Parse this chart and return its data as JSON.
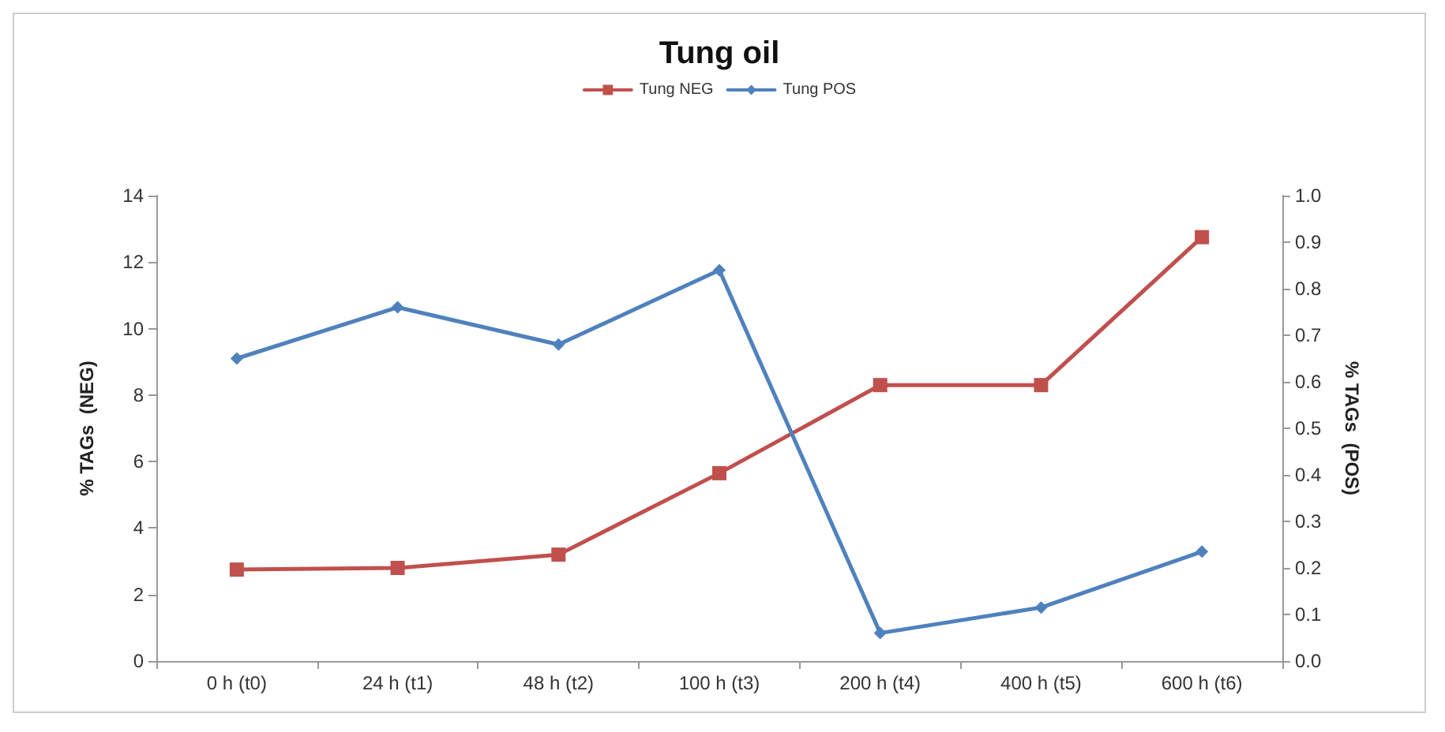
{
  "chart_data": {
    "type": "line",
    "title": "Tung oil",
    "ylabel": "% TAGs  (NEG)",
    "y2label": "% TAGs  (POS)",
    "categories": [
      "0 h (t0)",
      "24 h (t1)",
      "48 h (t2)",
      "100 h (t3)",
      "200 h (t4)",
      "400 h (t5)",
      "600 h (t6)"
    ],
    "series": [
      {
        "name": "Tung NEG",
        "color": "#c0504d",
        "marker": "square",
        "values": [
          2.75,
          2.8,
          3.2,
          5.65,
          8.3,
          8.3,
          12.75
        ]
      },
      {
        "name": "Tung POS",
        "color": "#4f81bd",
        "marker": "diamond",
        "axis": "y2",
        "values": [
          0.65,
          0.76,
          0.68,
          0.84,
          0.06,
          0.115,
          0.235
        ]
      }
    ],
    "ylim": [
      0,
      14
    ],
    "yticks": [
      0,
      2,
      4,
      6,
      8,
      10,
      12,
      14
    ],
    "y2lim": [
      0,
      1
    ],
    "y2ticks": [
      {
        "value": 0,
        "label": "0.0"
      },
      {
        "value": 0.1,
        "label": "0.1"
      },
      {
        "value": 0.2,
        "label": "0.2"
      },
      {
        "value": 0.3,
        "label": "0.3"
      },
      {
        "value": 0.4,
        "label": "0.4"
      },
      {
        "value": 0.5,
        "label": "0.5"
      },
      {
        "value": 0.6,
        "label": "0.6"
      },
      {
        "value": 0.7,
        "label": "0.7"
      },
      {
        "value": 0.8,
        "label": "0.8"
      },
      {
        "value": 0.9,
        "label": "0.9"
      },
      {
        "value": 1,
        "label": "1.0"
      }
    ],
    "grid": false,
    "legend": "top",
    "line_style": "solid"
  }
}
